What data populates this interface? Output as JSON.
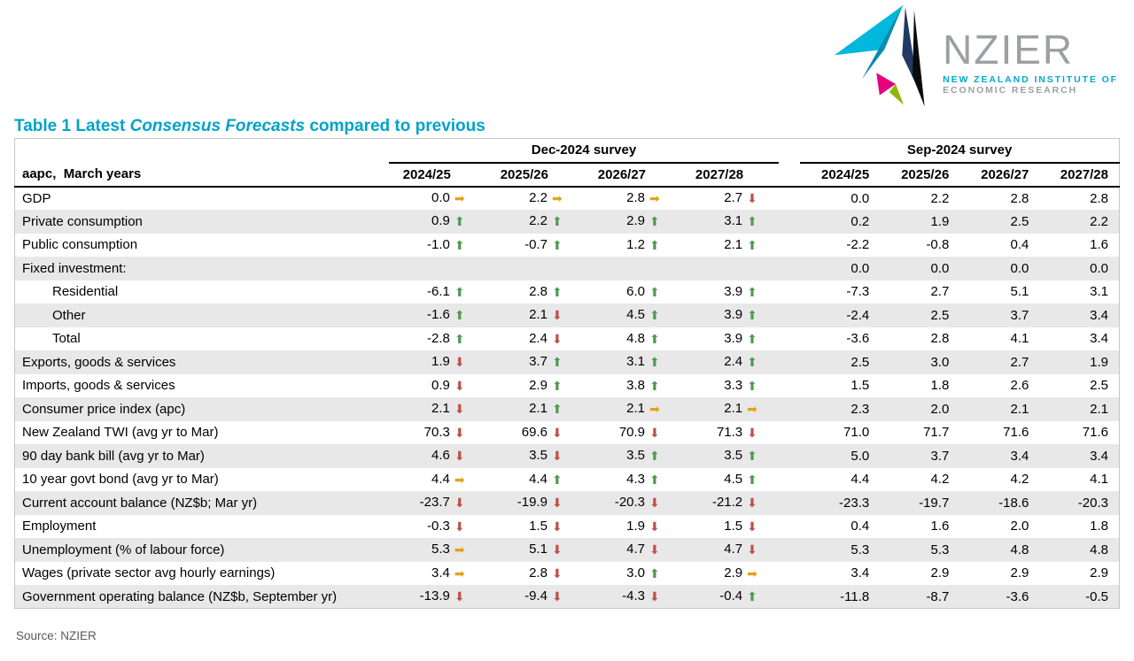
{
  "title": {
    "prefix": "Table 1 Latest ",
    "italic": "Consensus Forecasts",
    "suffix": " compared to previous"
  },
  "logo": {
    "name": "NZIER",
    "subtitle_line1": "NEW ZEALAND INSTITUTE OF",
    "subtitle_line2": "ECONOMIC RESEARCH"
  },
  "table": {
    "row_header_label": "aapc,  March years",
    "groups": [
      {
        "label": "Dec-2024 survey",
        "columns": [
          "2024/25",
          "2025/26",
          "2026/27",
          "2027/28"
        ]
      },
      {
        "label": "Sep-2024 survey",
        "columns": [
          "2024/25",
          "2025/26",
          "2026/27",
          "2027/28"
        ]
      }
    ],
    "rows": [
      {
        "label": "GDP",
        "indent": false,
        "dec": [
          {
            "v": "0.0",
            "a": "right"
          },
          {
            "v": "2.2",
            "a": "right"
          },
          {
            "v": "2.8",
            "a": "right"
          },
          {
            "v": "2.7",
            "a": "down"
          }
        ],
        "sep": [
          "0.0",
          "2.2",
          "2.8",
          "2.8"
        ]
      },
      {
        "label": "Private consumption",
        "indent": false,
        "dec": [
          {
            "v": "0.9",
            "a": "up"
          },
          {
            "v": "2.2",
            "a": "up"
          },
          {
            "v": "2.9",
            "a": "up"
          },
          {
            "v": "3.1",
            "a": "up"
          }
        ],
        "sep": [
          "0.2",
          "1.9",
          "2.5",
          "2.2"
        ]
      },
      {
        "label": "Public consumption",
        "indent": false,
        "dec": [
          {
            "v": "-1.0",
            "a": "up"
          },
          {
            "v": "-0.7",
            "a": "up"
          },
          {
            "v": "1.2",
            "a": "up"
          },
          {
            "v": "2.1",
            "a": "up"
          }
        ],
        "sep": [
          "-2.2",
          "-0.8",
          "0.4",
          "1.6"
        ]
      },
      {
        "label": "Fixed investment:",
        "indent": false,
        "dec": [
          null,
          null,
          null,
          null
        ],
        "sep": [
          "0.0",
          "0.0",
          "0.0",
          "0.0"
        ]
      },
      {
        "label": "Residential",
        "indent": true,
        "dec": [
          {
            "v": "-6.1",
            "a": "up"
          },
          {
            "v": "2.8",
            "a": "up"
          },
          {
            "v": "6.0",
            "a": "up"
          },
          {
            "v": "3.9",
            "a": "up"
          }
        ],
        "sep": [
          "-7.3",
          "2.7",
          "5.1",
          "3.1"
        ]
      },
      {
        "label": "Other",
        "indent": true,
        "dec": [
          {
            "v": "-1.6",
            "a": "up"
          },
          {
            "v": "2.1",
            "a": "down"
          },
          {
            "v": "4.5",
            "a": "up"
          },
          {
            "v": "3.9",
            "a": "up"
          }
        ],
        "sep": [
          "-2.4",
          "2.5",
          "3.7",
          "3.4"
        ]
      },
      {
        "label": "Total",
        "indent": true,
        "dec": [
          {
            "v": "-2.8",
            "a": "up"
          },
          {
            "v": "2.4",
            "a": "down"
          },
          {
            "v": "4.8",
            "a": "up"
          },
          {
            "v": "3.9",
            "a": "up"
          }
        ],
        "sep": [
          "-3.6",
          "2.8",
          "4.1",
          "3.4"
        ]
      },
      {
        "label": "Exports, goods & services",
        "indent": false,
        "dec": [
          {
            "v": "1.9",
            "a": "down"
          },
          {
            "v": "3.7",
            "a": "up"
          },
          {
            "v": "3.1",
            "a": "up"
          },
          {
            "v": "2.4",
            "a": "up"
          }
        ],
        "sep": [
          "2.5",
          "3.0",
          "2.7",
          "1.9"
        ]
      },
      {
        "label": "Imports, goods & services",
        "indent": false,
        "dec": [
          {
            "v": "0.9",
            "a": "down"
          },
          {
            "v": "2.9",
            "a": "up"
          },
          {
            "v": "3.8",
            "a": "up"
          },
          {
            "v": "3.3",
            "a": "up"
          }
        ],
        "sep": [
          "1.5",
          "1.8",
          "2.6",
          "2.5"
        ]
      },
      {
        "label": "Consumer price index (apc)",
        "indent": false,
        "dec": [
          {
            "v": "2.1",
            "a": "down"
          },
          {
            "v": "2.1",
            "a": "up"
          },
          {
            "v": "2.1",
            "a": "right"
          },
          {
            "v": "2.1",
            "a": "right"
          }
        ],
        "sep": [
          "2.3",
          "2.0",
          "2.1",
          "2.1"
        ]
      },
      {
        "label": "New Zealand TWI (avg yr to Mar)",
        "indent": false,
        "dec": [
          {
            "v": "70.3",
            "a": "down"
          },
          {
            "v": "69.6",
            "a": "down"
          },
          {
            "v": "70.9",
            "a": "down"
          },
          {
            "v": "71.3",
            "a": "down"
          }
        ],
        "sep": [
          "71.0",
          "71.7",
          "71.6",
          "71.6"
        ]
      },
      {
        "label": "90 day bank bill (avg yr to Mar)",
        "indent": false,
        "dec": [
          {
            "v": "4.6",
            "a": "down"
          },
          {
            "v": "3.5",
            "a": "down"
          },
          {
            "v": "3.5",
            "a": "up"
          },
          {
            "v": "3.5",
            "a": "up"
          }
        ],
        "sep": [
          "5.0",
          "3.7",
          "3.4",
          "3.4"
        ]
      },
      {
        "label": "10 year govt bond (avg yr to Mar)",
        "indent": false,
        "dec": [
          {
            "v": "4.4",
            "a": "right"
          },
          {
            "v": "4.4",
            "a": "up"
          },
          {
            "v": "4.3",
            "a": "up"
          },
          {
            "v": "4.5",
            "a": "up"
          }
        ],
        "sep": [
          "4.4",
          "4.2",
          "4.2",
          "4.1"
        ]
      },
      {
        "label": "Current account balance (NZ$b; Mar yr)",
        "indent": false,
        "dec": [
          {
            "v": "-23.7",
            "a": "down"
          },
          {
            "v": "-19.9",
            "a": "down"
          },
          {
            "v": "-20.3",
            "a": "down"
          },
          {
            "v": "-21.2",
            "a": "down"
          }
        ],
        "sep": [
          "-23.3",
          "-19.7",
          "-18.6",
          "-20.3"
        ]
      },
      {
        "label": "Employment",
        "indent": false,
        "dec": [
          {
            "v": "-0.3",
            "a": "down"
          },
          {
            "v": "1.5",
            "a": "down"
          },
          {
            "v": "1.9",
            "a": "down"
          },
          {
            "v": "1.5",
            "a": "down"
          }
        ],
        "sep": [
          "0.4",
          "1.6",
          "2.0",
          "1.8"
        ]
      },
      {
        "label": "Unemployment (% of labour force)",
        "indent": false,
        "dec": [
          {
            "v": "5.3",
            "a": "right"
          },
          {
            "v": "5.1",
            "a": "down"
          },
          {
            "v": "4.7",
            "a": "down"
          },
          {
            "v": "4.7",
            "a": "down"
          }
        ],
        "sep": [
          "5.3",
          "5.3",
          "4.8",
          "4.8"
        ]
      },
      {
        "label": "Wages (private sector avg hourly earnings)",
        "indent": false,
        "dec": [
          {
            "v": "3.4",
            "a": "right"
          },
          {
            "v": "2.8",
            "a": "down"
          },
          {
            "v": "3.0",
            "a": "up"
          },
          {
            "v": "2.9",
            "a": "right"
          }
        ],
        "sep": [
          "3.4",
          "2.9",
          "2.9",
          "2.9"
        ]
      },
      {
        "label": "Government operating balance (NZ$b, September yr)",
        "indent": false,
        "dec": [
          {
            "v": "-13.9",
            "a": "down"
          },
          {
            "v": "-9.4",
            "a": "down"
          },
          {
            "v": "-4.3",
            "a": "down"
          },
          {
            "v": "-0.4",
            "a": "up"
          }
        ],
        "sep": [
          "-11.8",
          "-8.7",
          "-3.6",
          "-0.5"
        ]
      }
    ]
  },
  "source": "Source: NZIER",
  "colors": {
    "accent": "#00a3c8",
    "arrow_up": "#4f9a4f",
    "arrow_down": "#c05046",
    "arrow_right": "#e3a21a",
    "stripe": "#e8e8e8"
  }
}
